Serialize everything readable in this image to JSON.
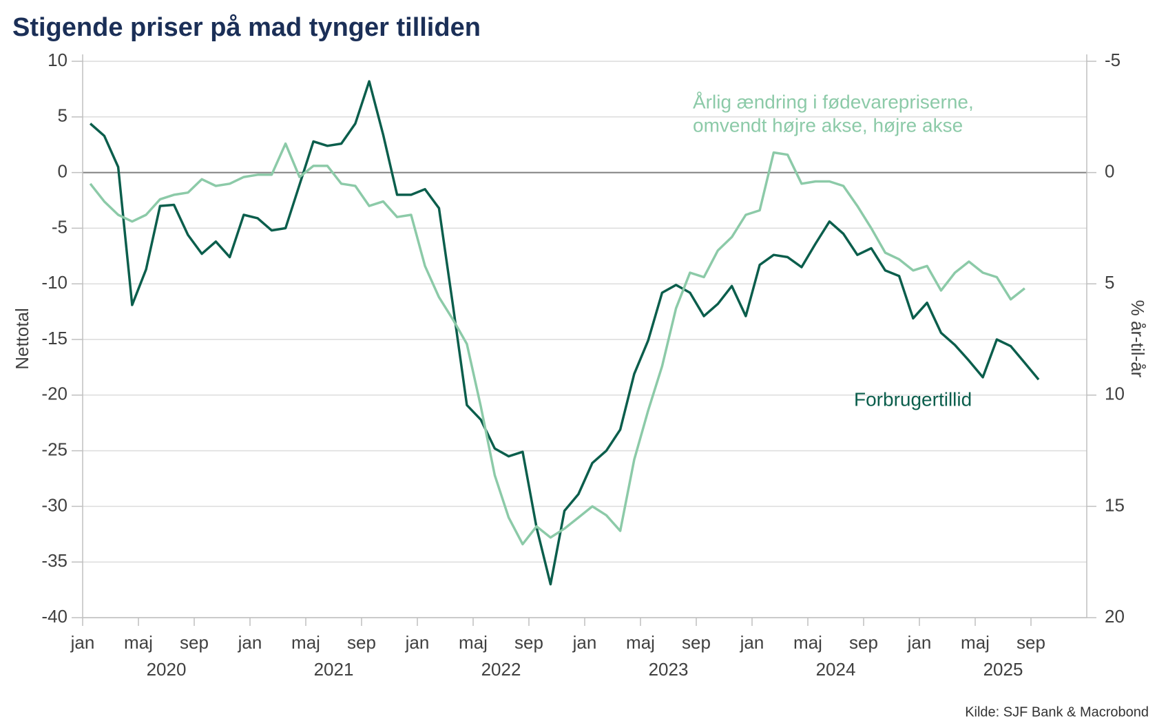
{
  "chart_data": {
    "type": "line",
    "title": "Stigende priser på mad tynger tilliden",
    "ylabel": "Nettotal",
    "y2label": "% år-til-år",
    "source": "Kilde: SJF Bank & Macrobond",
    "x": [
      "2020-01",
      "2020-02",
      "2020-03",
      "2020-04",
      "2020-05",
      "2020-06",
      "2020-07",
      "2020-08",
      "2020-09",
      "2020-10",
      "2020-11",
      "2020-12",
      "2021-01",
      "2021-02",
      "2021-03",
      "2021-04",
      "2021-05",
      "2021-06",
      "2021-07",
      "2021-08",
      "2021-09",
      "2021-10",
      "2021-11",
      "2021-12",
      "2022-01",
      "2022-02",
      "2022-03",
      "2022-04",
      "2022-05",
      "2022-06",
      "2022-07",
      "2022-08",
      "2022-09",
      "2022-10",
      "2022-11",
      "2022-12",
      "2023-01",
      "2023-02",
      "2023-03",
      "2023-04",
      "2023-05",
      "2023-06",
      "2023-07",
      "2023-08",
      "2023-09",
      "2023-10",
      "2023-11",
      "2023-12",
      "2024-01",
      "2024-02",
      "2024-03",
      "2024-04",
      "2024-05",
      "2024-06",
      "2024-07",
      "2024-08",
      "2024-09",
      "2024-10",
      "2024-11",
      "2024-12",
      "2025-01",
      "2025-02",
      "2025-03",
      "2025-04",
      "2025-05",
      "2025-06",
      "2025-07",
      "2025-08",
      "2025-09"
    ],
    "xlim": [
      "2020-01",
      "2025-12"
    ],
    "xticks": [
      {
        "value": "2020-01",
        "label": "jan"
      },
      {
        "value": "2020-05",
        "label": "maj"
      },
      {
        "value": "2020-09",
        "label": "sep"
      },
      {
        "value": "2021-01",
        "label": "jan"
      },
      {
        "value": "2021-05",
        "label": "maj"
      },
      {
        "value": "2021-09",
        "label": "sep"
      },
      {
        "value": "2022-01",
        "label": "jan"
      },
      {
        "value": "2022-05",
        "label": "maj"
      },
      {
        "value": "2022-09",
        "label": "sep"
      },
      {
        "value": "2023-01",
        "label": "jan"
      },
      {
        "value": "2023-05",
        "label": "maj"
      },
      {
        "value": "2023-09",
        "label": "sep"
      },
      {
        "value": "2024-01",
        "label": "jan"
      },
      {
        "value": "2024-05",
        "label": "maj"
      },
      {
        "value": "2024-09",
        "label": "sep"
      },
      {
        "value": "2025-01",
        "label": "jan"
      },
      {
        "value": "2025-05",
        "label": "maj"
      },
      {
        "value": "2025-09",
        "label": "sep"
      }
    ],
    "years": [
      "2020",
      "2021",
      "2022",
      "2023",
      "2024",
      "2025"
    ],
    "ylim": [
      -40,
      10
    ],
    "yticks": [
      -40,
      -35,
      -30,
      -25,
      -20,
      -15,
      -10,
      -5,
      0,
      5,
      10
    ],
    "y2lim": [
      -5,
      20
    ],
    "y2ticks": [
      -5,
      0,
      5,
      10,
      15,
      20
    ],
    "y2_inverted": true,
    "grid": true,
    "series": [
      {
        "name": [
          "Forbrugertillid"
        ],
        "color": "#0b5e4c",
        "values": [
          4.4,
          3.3,
          0.5,
          -11.9,
          -8.7,
          -3.0,
          -2.9,
          -5.6,
          -7.3,
          -6.2,
          -7.6,
          -3.8,
          -4.1,
          -5.2,
          -5.0,
          -1.1,
          2.8,
          2.4,
          2.6,
          4.4,
          8.2,
          3.4,
          -2.0,
          -2.0,
          -1.5,
          -3.2,
          -11.9,
          -20.9,
          -22.2,
          -24.8,
          -25.5,
          -25.1,
          -31.9,
          -37.0,
          -30.4,
          -28.9,
          -26.1,
          -25.0,
          -23.1,
          -18.1,
          -15.1,
          -10.8,
          -10.1,
          -10.8,
          -12.9,
          -11.8,
          -10.2,
          -12.9,
          -8.3,
          -7.4,
          -7.6,
          -8.5,
          -6.4,
          -4.4,
          -5.5,
          -7.4,
          -6.8,
          -8.8,
          -9.3,
          -13.1,
          -11.7,
          -14.4,
          -15.5,
          -16.9,
          -18.4,
          -15.0,
          -15.6,
          -17.1,
          -18.6
        ]
      },
      {
        "name": [
          "Årlig ændring i fødevarepriserne,",
          "omvendt højre akse, højre akse"
        ],
        "color": "#8ccaa8",
        "axis": "y2",
        "values": [
          0.5,
          1.3,
          1.9,
          2.2,
          1.9,
          1.2,
          1.0,
          0.9,
          0.3,
          0.6,
          0.5,
          0.2,
          0.1,
          0.1,
          -1.3,
          0.2,
          -0.3,
          -0.3,
          0.5,
          0.6,
          1.5,
          1.3,
          2.0,
          1.9,
          4.2,
          5.6,
          6.6,
          7.7,
          10.5,
          13.6,
          15.5,
          16.7,
          15.9,
          16.4,
          16.0,
          15.5,
          15.0,
          15.4,
          16.1,
          12.9,
          10.7,
          8.7,
          6.1,
          4.5,
          4.7,
          3.5,
          2.9,
          1.9,
          1.7,
          -0.9,
          -0.8,
          0.5,
          0.4,
          0.4,
          0.6,
          1.5,
          2.5,
          3.6,
          3.9,
          4.4,
          4.2,
          5.3,
          4.5,
          4.0,
          4.5,
          4.7,
          5.7,
          5.2,
          null
        ]
      }
    ]
  }
}
